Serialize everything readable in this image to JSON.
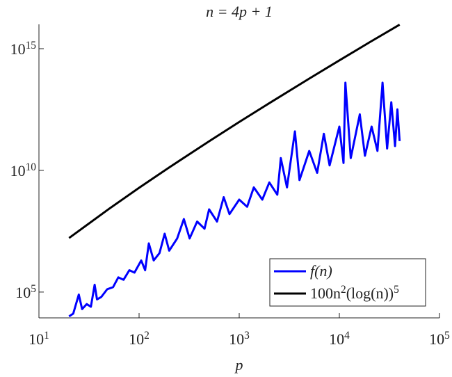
{
  "chart_data": {
    "type": "line",
    "title": "n = 4p + 1",
    "xlabel": "p",
    "xscale": "log",
    "yscale": "log",
    "legend": "lower right",
    "xlim": [
      10,
      100000
    ],
    "ylim": [
      8700,
      1e+16
    ],
    "xticks": [
      {
        "value": 10,
        "label": "10^1"
      },
      {
        "value": 100,
        "label": "10^2"
      },
      {
        "value": 1000,
        "label": "10^3"
      },
      {
        "value": 10000,
        "label": "10^4"
      },
      {
        "value": 100000,
        "label": "10^5"
      }
    ],
    "yticks": [
      {
        "value": 100000,
        "label": "10^5"
      },
      {
        "value": 10000000000,
        "label": "10^10"
      },
      {
        "value": 1000000000000000,
        "label": "10^15"
      }
    ],
    "series": [
      {
        "name": "f(n)",
        "color": "#0000ff",
        "x": [
          20,
          22,
          25,
          27,
          30,
          33,
          36,
          38,
          42,
          48,
          55,
          62,
          70,
          80,
          90,
          105,
          115,
          125,
          140,
          160,
          180,
          200,
          240,
          280,
          320,
          380,
          450,
          500,
          600,
          700,
          800,
          1000,
          1200,
          1400,
          1700,
          2000,
          2400,
          2600,
          3000,
          3600,
          4000,
          5000,
          6000,
          7000,
          8000,
          10000,
          11000,
          11500,
          13000,
          16000,
          18000,
          21000,
          24000,
          27000,
          30000,
          33000,
          36000,
          38000,
          40000
        ],
        "values": [
          10000.0,
          13000.0,
          79000.0,
          20000.0,
          32000.0,
          25000.0,
          200000.0,
          50000.0,
          63000.0,
          130000.0,
          160000.0,
          400000.0,
          320000.0,
          790000.0,
          630000.0,
          2000000.0,
          790000.0,
          10000000.0,
          2000000.0,
          4000000.0,
          25000000.0,
          5000000.0,
          16000000.0,
          100000000.0,
          16000000.0,
          79000000.0,
          40000000.0,
          250000000.0,
          79000000.0,
          790000000.0,
          160000000.0,
          630000000.0,
          320000000.0,
          2000000000.0,
          630000000.0,
          3200000000.0,
          1000000000.0,
          32000000000.0,
          2000000000.0,
          400000000000.0,
          4000000000.0,
          63000000000.0,
          7900000000.0,
          320000000000.0,
          16000000000.0,
          630000000000.0,
          20000000000.0,
          40000000000000.0,
          32000000000.0,
          2000000000000.0,
          40000000000.0,
          630000000000.0,
          63000000000.0,
          40000000000000.0,
          79000000000.0,
          6300000000000.0,
          100000000000.0,
          3200000000000.0,
          160000000000.0
        ]
      },
      {
        "name": "100n^2(log(n))^5",
        "color": "#000000",
        "x": [
          20,
          50,
          100,
          200,
          500,
          1000,
          2000,
          5000,
          10000,
          20000,
          40000
        ],
        "values": [
          16600000.0,
          261000000.0,
          1920000000.0,
          13250000000.0,
          156800000000.0,
          968500000000.0,
          5768000000000.0,
          59050000000000.0,
          331200000000000.0,
          1823000000000000.0,
          9760000000000000.0
        ]
      }
    ]
  }
}
